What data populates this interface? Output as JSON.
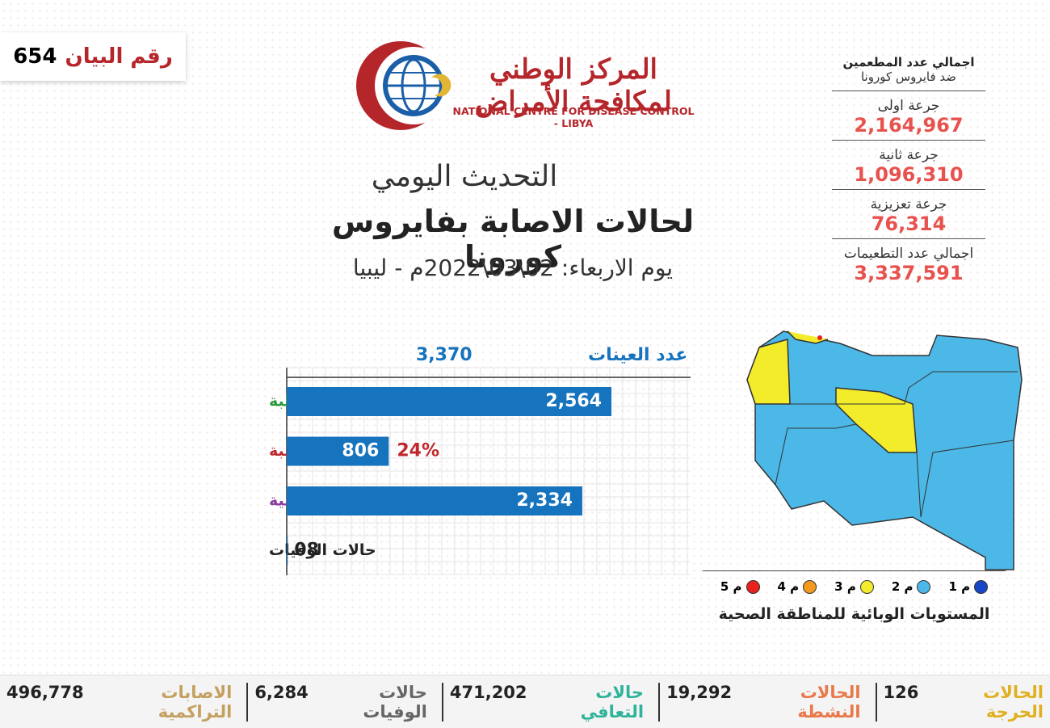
{
  "header": {
    "statement_label": "رقم البيان",
    "statement_number": "654",
    "org_arabic": "المركز الوطني لمكافحة الأمراض",
    "org_english": "NATIONAL CENTRE FOR DISEASE CONTROL - LIBYA"
  },
  "title": {
    "line1": "التحديث اليومي",
    "line2": "لحالات الاصابة بفايروس كورونا",
    "date": "يوم الاربعاء: 02\\03\\2022م - ليبيا"
  },
  "vaccination": {
    "heading": "اجمالي عدد المطعمين",
    "subheading": "ضد فايروس كورونا",
    "items": [
      {
        "label": "جرعة اولى",
        "value": "2,164,967"
      },
      {
        "label": "جرعة ثانية",
        "value": "1,096,310"
      },
      {
        "label": "جرعة تعزيزية",
        "value": "76,314"
      },
      {
        "label": "اجمالي عدد التطعيمات",
        "value": "3,337,591"
      }
    ]
  },
  "chart_data": {
    "type": "bar",
    "orientation": "horizontal",
    "title": "عدد العينات",
    "samples": {
      "value": 3370,
      "label": "3,370"
    },
    "categories": [
      "الحالات السالبة",
      "الحالات الموجبة",
      "الحالات المتعافية",
      "حالات الوفيات"
    ],
    "category_colors": [
      "#2e9a3e",
      "#c0282d",
      "#8b3a9e",
      "#222222"
    ],
    "values": [
      2564,
      806,
      2334,
      8
    ],
    "value_labels": [
      "2,564",
      "806",
      "2,334",
      "08"
    ],
    "color": "#1673bd",
    "annotation": "24%",
    "annotation_color": "#c0282d"
  },
  "map_legend": {
    "title": "المستويات الوبائية للمناطقة الصحية",
    "levels": [
      {
        "label": "م 1",
        "color": "#1846c8"
      },
      {
        "label": "م 2",
        "color": "#4cb8e8"
      },
      {
        "label": "م 3",
        "color": "#f2ec2a"
      },
      {
        "label": "م 4",
        "color": "#f39a1e"
      },
      {
        "label": "م 5",
        "color": "#e8201e"
      }
    ]
  },
  "footer": [
    {
      "label": "الحالات الحرجة",
      "value": "126",
      "color": "#e0b020"
    },
    {
      "label": "الحالات النشطة",
      "value": "19,292",
      "color": "#e8794a"
    },
    {
      "label": "حالات التعافي",
      "value": "471,202",
      "color": "#2fb39a"
    },
    {
      "label": "حالات الوفيات",
      "value": "6,284",
      "color": "#666666"
    },
    {
      "label": "الاصابات التراكمية",
      "value": "496,778",
      "color": "#c4a060"
    }
  ]
}
